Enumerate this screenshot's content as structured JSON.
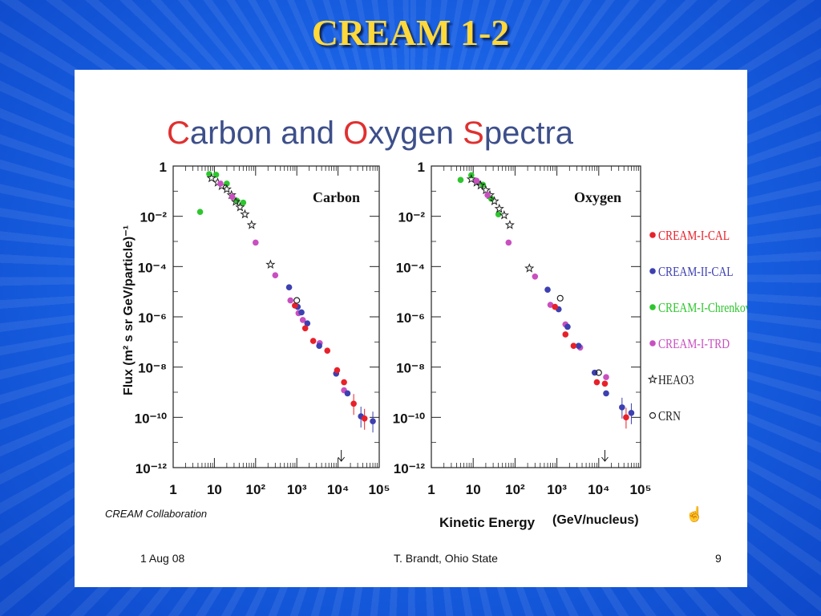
{
  "slide": {
    "title": "CREAM 1-2",
    "footer_date": "1 Aug 08",
    "footer_author": "T. Brandt, Ohio State",
    "footer_page": "9",
    "credit": "CREAM Collaboration"
  },
  "chart_data": {
    "type": "scatter",
    "title_parts": [
      {
        "text": "C",
        "color": "#e03030"
      },
      {
        "text": "arbon and ",
        "color": "#3d4f8a"
      },
      {
        "text": "O",
        "color": "#e03030"
      },
      {
        "text": "xygen ",
        "color": "#3d4f8a"
      },
      {
        "text": "S",
        "color": "#e03030"
      },
      {
        "text": "pectra",
        "color": "#3d4f8a"
      }
    ],
    "ylabel": "Flux (m² s sr GeV/particle)⁻¹",
    "xlabel": "Kinetic Energy",
    "xlabel_unit": "(GeV/nucleus)",
    "x_log": true,
    "y_log": true,
    "xlim": [
      1,
      100000
    ],
    "ylim": [
      1e-12,
      1
    ],
    "x_ticks": [
      "1",
      "10",
      "10²",
      "10³",
      "10⁴",
      "10⁵"
    ],
    "y_ticks": [
      "1",
      "10⁻²",
      "10⁻⁴",
      "10⁻⁶",
      "10⁻⁸",
      "10⁻¹⁰",
      "10⁻¹²"
    ],
    "legend": [
      {
        "name": "CREAM-I-CAL",
        "color": "#e8202a",
        "marker": "circle"
      },
      {
        "name": "CREAM-II-CAL",
        "color": "#3d40b0",
        "marker": "circle"
      },
      {
        "name": "CREAM-I-Chrenkov",
        "color": "#2ec62e",
        "marker": "circle"
      },
      {
        "name": "CREAM-I-TRD",
        "color": "#c94fc0",
        "marker": "circle"
      },
      {
        "name": "HEAO3",
        "color": "#222222",
        "marker": "star"
      },
      {
        "name": "CRN",
        "color": "#222222",
        "marker": "open-circle"
      }
    ],
    "panels": [
      {
        "label": "Carbon",
        "arrow_x": 12000,
        "series": [
          {
            "name": "CREAM-I-Chrenkov",
            "points": [
              [
                4.5,
                0.015
              ],
              [
                7.5,
                0.48
              ],
              [
                11,
                0.45
              ],
              [
                20,
                0.2
              ],
              [
                35,
                0.042
              ],
              [
                50,
                0.035
              ]
            ]
          },
          {
            "name": "HEAO3",
            "points": [
              [
                8.5,
                0.33
              ],
              [
                12,
                0.22
              ],
              [
                15,
                0.16
              ],
              [
                20,
                0.12
              ],
              [
                26,
                0.07
              ],
              [
                33,
                0.038
              ],
              [
                42,
                0.023
              ],
              [
                55,
                0.012
              ],
              [
                80,
                0.0045
              ],
              [
                230,
                0.00012
              ]
            ]
          },
          {
            "name": "CREAM-I-TRD",
            "points": [
              [
                14,
                0.2
              ],
              [
                27,
                0.06
              ],
              [
                100,
                0.0009
              ],
              [
                300,
                4.5e-05
              ],
              [
                700,
                4.5e-06
              ],
              [
                1100,
                1.4e-06
              ],
              [
                1400,
                7.5e-07
              ],
              [
                3600,
                9e-08
              ],
              [
                14000,
                1.2e-09
              ]
            ]
          },
          {
            "name": "CREAM-II-CAL",
            "points": [
              [
                650,
                1.5e-05
              ],
              [
                1050,
                2.5e-06
              ],
              [
                1300,
                1.5e-06
              ],
              [
                1800,
                5.5e-07
              ],
              [
                3500,
                7e-08
              ],
              [
                9000,
                5.5e-09
              ],
              [
                17000,
                9e-10
              ],
              [
                36000,
                1.1e-10
              ],
              [
                70000,
                7e-11
              ]
            ]
          },
          {
            "name": "CREAM-I-CAL",
            "points": [
              [
                900,
                2.8e-06
              ],
              [
                1600,
                3.5e-07
              ],
              [
                2500,
                1.1e-07
              ],
              [
                5500,
                4.5e-08
              ],
              [
                9500,
                7.5e-09
              ],
              [
                14000,
                2.5e-09
              ],
              [
                24000,
                3.5e-10
              ],
              [
                44000,
                9e-11
              ]
            ]
          },
          {
            "name": "CRN",
            "points": [
              [
                1000,
                4.5e-06
              ]
            ]
          }
        ]
      },
      {
        "label": "Oxygen",
        "arrow_x": 14000,
        "series": [
          {
            "name": "CREAM-I-Chrenkov",
            "points": [
              [
                5,
                0.28
              ],
              [
                9,
                0.43
              ],
              [
                17,
                0.18
              ],
              [
                27,
                0.05
              ],
              [
                40,
                0.012
              ]
            ]
          },
          {
            "name": "HEAO3",
            "points": [
              [
                9,
                0.3
              ],
              [
                12,
                0.22
              ],
              [
                15,
                0.17
              ],
              [
                20,
                0.11
              ],
              [
                25,
                0.07
              ],
              [
                32,
                0.04
              ],
              [
                42,
                0.02
              ],
              [
                55,
                0.011
              ],
              [
                75,
                0.0045
              ],
              [
                220,
                8.5e-05
              ]
            ]
          },
          {
            "name": "CREAM-I-TRD",
            "points": [
              [
                12,
                0.26
              ],
              [
                22,
                0.07
              ],
              [
                70,
                0.0009
              ],
              [
                300,
                4e-05
              ],
              [
                700,
                3e-06
              ],
              [
                1600,
                5e-07
              ],
              [
                3600,
                6e-08
              ],
              [
                15000,
                4e-09
              ]
            ]
          },
          {
            "name": "CREAM-II-CAL",
            "points": [
              [
                600,
                1.2e-05
              ],
              [
                1100,
                2e-06
              ],
              [
                1800,
                4e-07
              ],
              [
                3300,
                7e-08
              ],
              [
                8000,
                6e-09
              ],
              [
                15000,
                9e-10
              ],
              [
                36000,
                2.5e-10
              ],
              [
                60000,
                1.5e-10
              ]
            ]
          },
          {
            "name": "CREAM-I-CAL",
            "points": [
              [
                900,
                2.5e-06
              ],
              [
                1600,
                2e-07
              ],
              [
                2500,
                7e-08
              ],
              [
                9000,
                2.5e-09
              ],
              [
                14000,
                2.2e-09
              ],
              [
                45000,
                1e-10
              ]
            ]
          },
          {
            "name": "CRN",
            "points": [
              [
                1200,
                5.5e-06
              ],
              [
                10000,
                6e-09
              ]
            ]
          }
        ]
      }
    ]
  }
}
